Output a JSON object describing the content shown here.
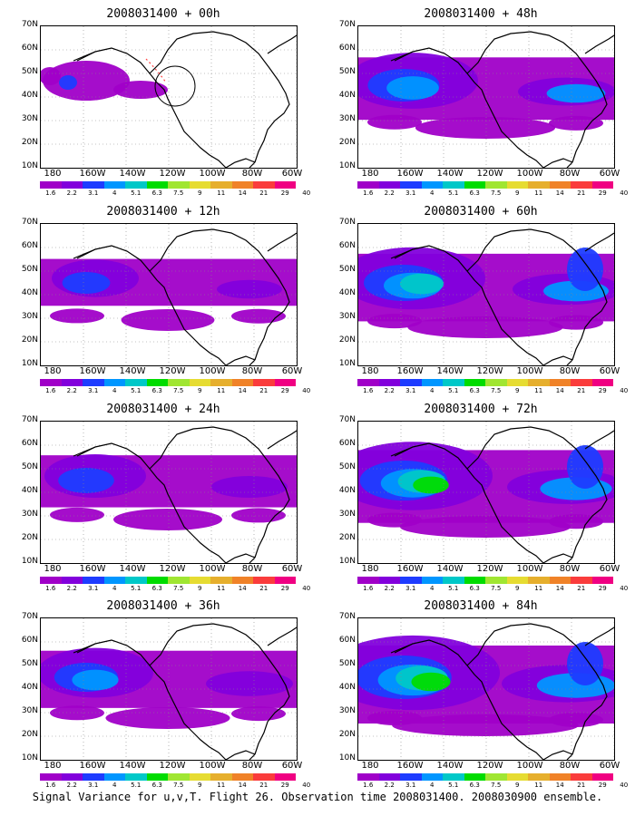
{
  "panels": [
    {
      "title": "2008031400 + 00h",
      "col": 0,
      "row": 0,
      "hour": 0
    },
    {
      "title": "2008031400 + 48h",
      "col": 1,
      "row": 0,
      "hour": 48
    },
    {
      "title": "2008031400 + 12h",
      "col": 0,
      "row": 1,
      "hour": 12
    },
    {
      "title": "2008031400 + 60h",
      "col": 1,
      "row": 1,
      "hour": 60
    },
    {
      "title": "2008031400 + 24h",
      "col": 0,
      "row": 2,
      "hour": 24
    },
    {
      "title": "2008031400 + 72h",
      "col": 1,
      "row": 2,
      "hour": 72
    },
    {
      "title": "2008031400 + 36h",
      "col": 0,
      "row": 3,
      "hour": 36
    },
    {
      "title": "2008031400 + 84h",
      "col": 1,
      "row": 3,
      "hour": 84
    }
  ],
  "lat_labels": [
    "70N",
    "60N",
    "50N",
    "40N",
    "30N",
    "20N",
    "10N"
  ],
  "lon_labels": [
    "180",
    "160W",
    "140W",
    "120W",
    "100W",
    "80W",
    "60W"
  ],
  "colorbar_labels": [
    "1.6",
    "2.2",
    "3.1",
    "4",
    "5.1",
    "6.3",
    "7.5",
    "9",
    "11",
    "14",
    "21",
    "29",
    "40"
  ],
  "colorbar_colors": [
    "#a000c8",
    "#8200dc",
    "#1e3cff",
    "#0096ff",
    "#00c8c8",
    "#00dc00",
    "#a0e632",
    "#e6dc32",
    "#e6af2d",
    "#f08228",
    "#fa3c3c",
    "#f00082"
  ],
  "caption": "Signal Variance for u,v,T. Flight 26. Observation time 2008031400. 2008030900 ensemble."
}
